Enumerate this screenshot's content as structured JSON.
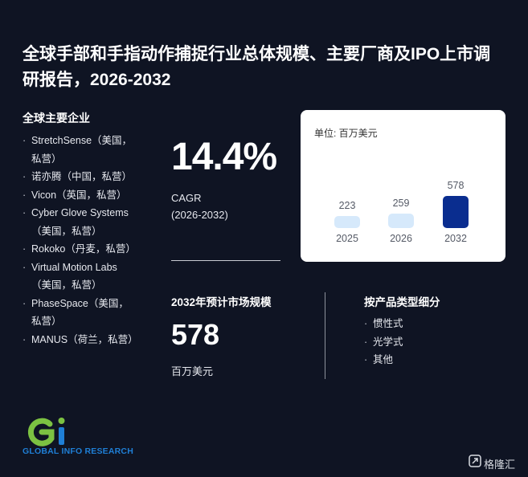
{
  "title": "全球手部和手指动作捕捉行业总体规模、主要厂商及IPO上市调研报告，2026-2032",
  "companies": {
    "heading": "全球主要企业",
    "items": [
      "StretchSense（美国，私营）",
      "诺亦腾（中国，私营）",
      "Vicon（英国，私营）",
      "Cyber Glove Systems（美国，私营）",
      "Rokoko（丹麦，私营）",
      "Virtual Motion Labs（美国，私营）",
      "PhaseSpace（美国，私营）",
      "MANUS（荷兰，私营）"
    ]
  },
  "cagr": {
    "value": "14.4%",
    "label_line1": "CAGR",
    "label_line2": "(2026-2032)"
  },
  "chart_data": {
    "type": "bar",
    "unit_label": "单位: 百万美元",
    "categories": [
      "2025",
      "2026",
      "2032"
    ],
    "values": [
      223,
      259,
      578
    ],
    "colors": [
      "#d6e9fb",
      "#d6e9fb",
      "#0a2d8f"
    ]
  },
  "market": {
    "heading": "2032年预计市场规模",
    "value": "578",
    "unit": "百万美元"
  },
  "segments": {
    "heading": "按产品类型细分",
    "items": [
      "惯性式",
      "光学式",
      "其他"
    ]
  },
  "logo": {
    "text": "GLOBAL INFO RESEARCH",
    "colors": {
      "green": "#7cc242",
      "blue": "#1f7fd6"
    }
  },
  "watermark": {
    "text": "格隆汇"
  }
}
